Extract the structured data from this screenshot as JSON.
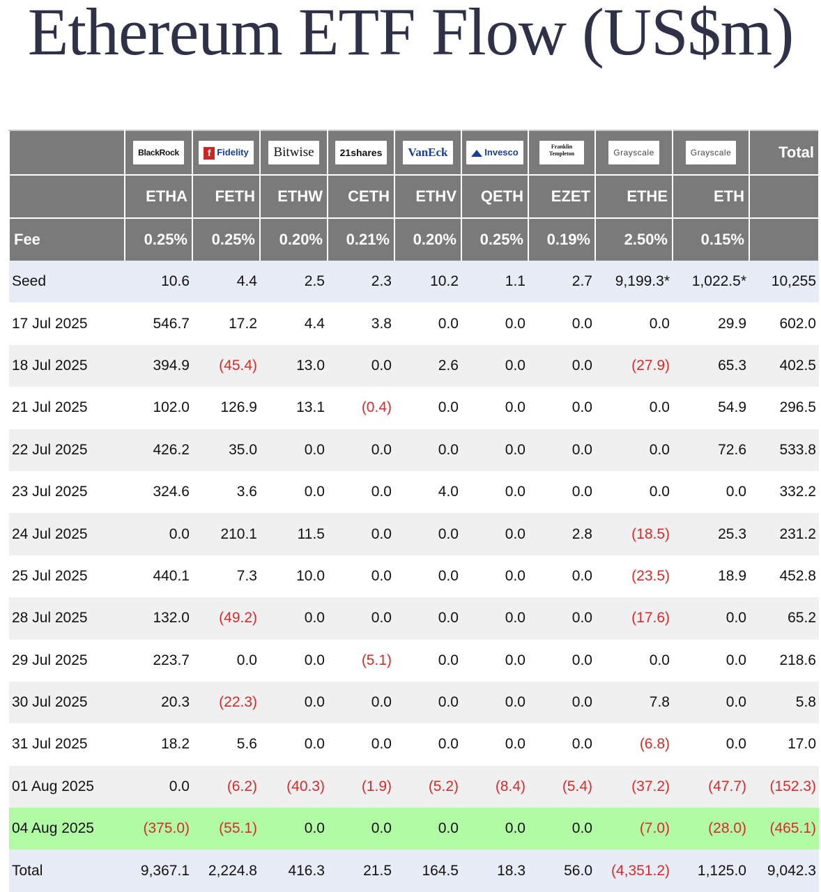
{
  "title": "Ethereum ETF Flow (US$m)",
  "colors": {
    "header_bg": "#7a7a7a",
    "negative": "#d62b2b",
    "highlight": "#b2fba5",
    "seed_total_bg": "#e8ecf6",
    "title": "#2e3147"
  },
  "chart_data": {
    "type": "table",
    "title": "Ethereum ETF Flow (US$m)",
    "issuers": [
      "BlackRock",
      "Fidelity",
      "Bitwise",
      "21shares",
      "VanEck",
      "Invesco",
      "Franklin Templeton",
      "Grayscale",
      "Grayscale"
    ],
    "total_label": "Total",
    "tickers": [
      "ETHA",
      "FETH",
      "ETHW",
      "CETH",
      "ETHV",
      "QETH",
      "EZET",
      "ETHE",
      "ETH"
    ],
    "fee_label": "Fee",
    "fees": [
      "0.25%",
      "0.25%",
      "0.20%",
      "0.21%",
      "0.20%",
      "0.25%",
      "0.19%",
      "2.50%",
      "0.15%"
    ],
    "rows": [
      {
        "date": "Seed",
        "values": [
          "10.6",
          "4.4",
          "2.5",
          "2.3",
          "10.2",
          "1.1",
          "2.7",
          "9,199.3*",
          "1,022.5*",
          "10,255"
        ]
      },
      {
        "date": "17 Jul 2025",
        "values": [
          "546.7",
          "17.2",
          "4.4",
          "3.8",
          "0.0",
          "0.0",
          "0.0",
          "0.0",
          "29.9",
          "602.0"
        ]
      },
      {
        "date": "18 Jul 2025",
        "values": [
          "394.9",
          "(45.4)",
          "13.0",
          "0.0",
          "2.6",
          "0.0",
          "0.0",
          "(27.9)",
          "65.3",
          "402.5"
        ]
      },
      {
        "date": "21 Jul 2025",
        "values": [
          "102.0",
          "126.9",
          "13.1",
          "(0.4)",
          "0.0",
          "0.0",
          "0.0",
          "0.0",
          "54.9",
          "296.5"
        ]
      },
      {
        "date": "22 Jul 2025",
        "values": [
          "426.2",
          "35.0",
          "0.0",
          "0.0",
          "0.0",
          "0.0",
          "0.0",
          "0.0",
          "72.6",
          "533.8"
        ]
      },
      {
        "date": "23 Jul 2025",
        "values": [
          "324.6",
          "3.6",
          "0.0",
          "0.0",
          "4.0",
          "0.0",
          "0.0",
          "0.0",
          "0.0",
          "332.2"
        ]
      },
      {
        "date": "24 Jul 2025",
        "values": [
          "0.0",
          "210.1",
          "11.5",
          "0.0",
          "0.0",
          "0.0",
          "2.8",
          "(18.5)",
          "25.3",
          "231.2"
        ]
      },
      {
        "date": "25 Jul 2025",
        "values": [
          "440.1",
          "7.3",
          "10.0",
          "0.0",
          "0.0",
          "0.0",
          "0.0",
          "(23.5)",
          "18.9",
          "452.8"
        ]
      },
      {
        "date": "28 Jul 2025",
        "values": [
          "132.0",
          "(49.2)",
          "0.0",
          "0.0",
          "0.0",
          "0.0",
          "0.0",
          "(17.6)",
          "0.0",
          "65.2"
        ]
      },
      {
        "date": "29 Jul 2025",
        "values": [
          "223.7",
          "0.0",
          "0.0",
          "(5.1)",
          "0.0",
          "0.0",
          "0.0",
          "0.0",
          "0.0",
          "218.6"
        ]
      },
      {
        "date": "30 Jul 2025",
        "values": [
          "20.3",
          "(22.3)",
          "0.0",
          "0.0",
          "0.0",
          "0.0",
          "0.0",
          "7.8",
          "0.0",
          "5.8"
        ]
      },
      {
        "date": "31 Jul 2025",
        "values": [
          "18.2",
          "5.6",
          "0.0",
          "0.0",
          "0.0",
          "0.0",
          "0.0",
          "(6.8)",
          "0.0",
          "17.0"
        ]
      },
      {
        "date": "01 Aug 2025",
        "values": [
          "0.0",
          "(6.2)",
          "(40.3)",
          "(1.9)",
          "(5.2)",
          "(8.4)",
          "(5.4)",
          "(37.2)",
          "(47.7)",
          "(152.3)"
        ]
      },
      {
        "date": "04 Aug 2025",
        "values": [
          "(375.0)",
          "(55.1)",
          "0.0",
          "0.0",
          "0.0",
          "0.0",
          "0.0",
          "(7.0)",
          "(28.0)",
          "(465.1)"
        ]
      },
      {
        "date": "Total",
        "values": [
          "9,367.1",
          "2,224.8",
          "416.3",
          "21.5",
          "164.5",
          "18.3",
          "56.0",
          "(4,351.2)",
          "1,125.0",
          "9,042.3"
        ]
      }
    ]
  }
}
